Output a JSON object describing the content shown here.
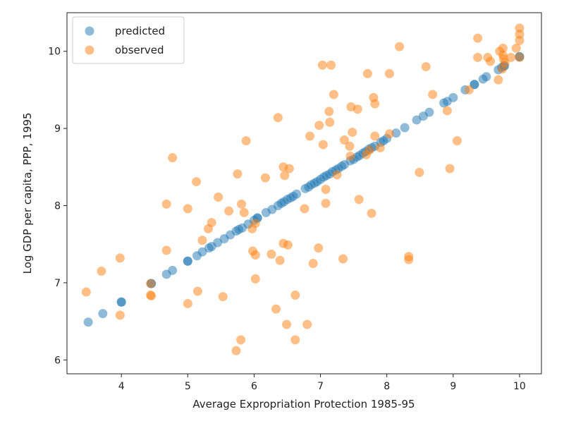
{
  "chart_data": {
    "type": "scatter",
    "title": "",
    "xlabel": "Average Expropriation Protection 1985-95",
    "ylabel": "Log GDP per capita, PPP, 1995",
    "xlim": [
      3.18,
      10.33
    ],
    "ylim": [
      5.82,
      10.5
    ],
    "xticks": [
      4,
      5,
      6,
      7,
      8,
      9,
      10
    ],
    "yticks": [
      6,
      7,
      8,
      9,
      10
    ],
    "grid": false,
    "legend_placement": "upper-left",
    "series": [
      {
        "name": "predicted",
        "color": "#1f77b4",
        "alpha": 0.5,
        "points": [
          [
            3.5,
            6.49
          ],
          [
            3.72,
            6.6
          ],
          [
            4.0,
            6.75
          ],
          [
            4.0,
            6.75
          ],
          [
            4.45,
            6.99
          ],
          [
            4.45,
            6.99
          ],
          [
            4.68,
            7.11
          ],
          [
            4.77,
            7.16
          ],
          [
            5.0,
            7.28
          ],
          [
            5.0,
            7.28
          ],
          [
            5.14,
            7.35
          ],
          [
            5.22,
            7.4
          ],
          [
            5.32,
            7.45
          ],
          [
            5.36,
            7.47
          ],
          [
            5.45,
            7.52
          ],
          [
            5.55,
            7.57
          ],
          [
            5.64,
            7.62
          ],
          [
            5.73,
            7.67
          ],
          [
            5.77,
            7.69
          ],
          [
            5.82,
            7.71
          ],
          [
            5.91,
            7.76
          ],
          [
            6.0,
            7.81
          ],
          [
            6.05,
            7.84
          ],
          [
            6.05,
            7.84
          ],
          [
            6.18,
            7.91
          ],
          [
            6.27,
            7.95
          ],
          [
            6.36,
            8.0
          ],
          [
            6.41,
            8.03
          ],
          [
            6.45,
            8.05
          ],
          [
            6.5,
            8.08
          ],
          [
            6.55,
            8.1
          ],
          [
            6.59,
            8.12
          ],
          [
            6.64,
            8.15
          ],
          [
            6.77,
            8.22
          ],
          [
            6.82,
            8.24
          ],
          [
            6.86,
            8.27
          ],
          [
            6.91,
            8.29
          ],
          [
            6.95,
            8.31
          ],
          [
            7.0,
            8.34
          ],
          [
            7.05,
            8.37
          ],
          [
            7.09,
            8.39
          ],
          [
            7.14,
            8.41
          ],
          [
            7.18,
            8.44
          ],
          [
            7.23,
            8.46
          ],
          [
            7.27,
            8.48
          ],
          [
            7.32,
            8.51
          ],
          [
            7.36,
            8.53
          ],
          [
            7.45,
            8.58
          ],
          [
            7.5,
            8.6
          ],
          [
            7.55,
            8.63
          ],
          [
            7.59,
            8.65
          ],
          [
            7.64,
            8.68
          ],
          [
            7.68,
            8.7
          ],
          [
            7.73,
            8.73
          ],
          [
            7.77,
            8.75
          ],
          [
            7.82,
            8.77
          ],
          [
            7.91,
            8.82
          ],
          [
            7.95,
            8.84
          ],
          [
            8.0,
            8.87
          ],
          [
            8.14,
            8.94
          ],
          [
            8.27,
            9.01
          ],
          [
            8.45,
            9.11
          ],
          [
            8.55,
            9.16
          ],
          [
            8.64,
            9.21
          ],
          [
            8.86,
            9.33
          ],
          [
            8.91,
            9.35
          ],
          [
            9.0,
            9.4
          ],
          [
            9.18,
            9.5
          ],
          [
            9.32,
            9.57
          ],
          [
            9.32,
            9.57
          ],
          [
            9.45,
            9.64
          ],
          [
            9.5,
            9.67
          ],
          [
            9.68,
            9.76
          ],
          [
            9.73,
            9.79
          ],
          [
            9.77,
            9.81
          ],
          [
            9.77,
            9.81
          ],
          [
            10.0,
            9.93
          ],
          [
            10.0,
            9.93
          ]
        ]
      },
      {
        "name": "observed",
        "color": "#ff7f0e",
        "alpha": 0.5,
        "points": [
          [
            3.47,
            6.88
          ],
          [
            3.7,
            7.15
          ],
          [
            3.98,
            7.32
          ],
          [
            3.98,
            6.58
          ],
          [
            4.44,
            6.99
          ],
          [
            4.44,
            6.84
          ],
          [
            4.45,
            6.83
          ],
          [
            4.68,
            7.42
          ],
          [
            4.68,
            8.02
          ],
          [
            4.77,
            8.62
          ],
          [
            5.0,
            7.96
          ],
          [
            5.0,
            6.73
          ],
          [
            5.13,
            8.31
          ],
          [
            5.15,
            6.89
          ],
          [
            5.22,
            7.55
          ],
          [
            5.31,
            7.7
          ],
          [
            5.36,
            7.78
          ],
          [
            5.46,
            8.11
          ],
          [
            5.53,
            6.82
          ],
          [
            5.62,
            7.93
          ],
          [
            5.75,
            8.41
          ],
          [
            5.73,
            6.12
          ],
          [
            5.8,
            6.26
          ],
          [
            5.81,
            8.02
          ],
          [
            5.85,
            7.91
          ],
          [
            5.88,
            8.84
          ],
          [
            5.97,
            7.7
          ],
          [
            6.02,
            7.77
          ],
          [
            5.98,
            7.41
          ],
          [
            6.02,
            7.36
          ],
          [
            6.02,
            7.05
          ],
          [
            6.17,
            8.36
          ],
          [
            6.26,
            7.37
          ],
          [
            6.33,
            6.66
          ],
          [
            6.36,
            9.14
          ],
          [
            6.39,
            7.29
          ],
          [
            6.44,
            8.5
          ],
          [
            6.44,
            7.51
          ],
          [
            6.51,
            7.49
          ],
          [
            6.46,
            8.39
          ],
          [
            6.53,
            8.48
          ],
          [
            6.49,
            6.46
          ],
          [
            6.62,
            6.84
          ],
          [
            6.62,
            6.26
          ],
          [
            6.76,
            7.96
          ],
          [
            6.8,
            6.46
          ],
          [
            6.84,
            8.9
          ],
          [
            6.89,
            7.25
          ],
          [
            6.97,
            7.45
          ],
          [
            6.98,
            9.04
          ],
          [
            7.03,
            9.82
          ],
          [
            7.16,
            9.82
          ],
          [
            7.04,
            8.79
          ],
          [
            7.08,
            8.21
          ],
          [
            7.08,
            8.03
          ],
          [
            7.13,
            9.22
          ],
          [
            7.14,
            9.08
          ],
          [
            7.2,
            9.44
          ],
          [
            7.25,
            8.4
          ],
          [
            7.34,
            7.31
          ],
          [
            7.36,
            8.85
          ],
          [
            7.46,
            9.28
          ],
          [
            7.44,
            8.77
          ],
          [
            7.48,
            8.95
          ],
          [
            7.45,
            8.64
          ],
          [
            7.56,
            9.25
          ],
          [
            7.58,
            8.08
          ],
          [
            7.71,
            9.71
          ],
          [
            7.69,
            8.66
          ],
          [
            7.74,
            8.72
          ],
          [
            7.77,
            7.9
          ],
          [
            7.8,
            9.4
          ],
          [
            7.82,
            9.32
          ],
          [
            7.82,
            8.9
          ],
          [
            7.9,
            8.75
          ],
          [
            8.04,
            9.71
          ],
          [
            8.04,
            8.93
          ],
          [
            8.19,
            10.06
          ],
          [
            8.33,
            7.34
          ],
          [
            8.33,
            7.3
          ],
          [
            8.49,
            8.43
          ],
          [
            8.59,
            9.8
          ],
          [
            8.69,
            9.44
          ],
          [
            8.91,
            9.23
          ],
          [
            8.95,
            8.48
          ],
          [
            9.06,
            8.84
          ],
          [
            9.24,
            9.5
          ],
          [
            9.37,
            10.17
          ],
          [
            9.37,
            9.92
          ],
          [
            9.52,
            9.92
          ],
          [
            9.56,
            9.87
          ],
          [
            9.68,
            9.63
          ],
          [
            9.7,
            10.0
          ],
          [
            9.75,
            9.95
          ],
          [
            9.75,
            10.04
          ],
          [
            9.76,
            9.9
          ],
          [
            9.78,
            9.85
          ],
          [
            9.74,
            9.77
          ],
          [
            9.87,
            9.92
          ],
          [
            10.0,
            10.3
          ],
          [
            10.0,
            10.22
          ],
          [
            10.0,
            10.14
          ],
          [
            9.95,
            10.04
          ],
          [
            10.0,
            9.92
          ]
        ]
      }
    ]
  }
}
